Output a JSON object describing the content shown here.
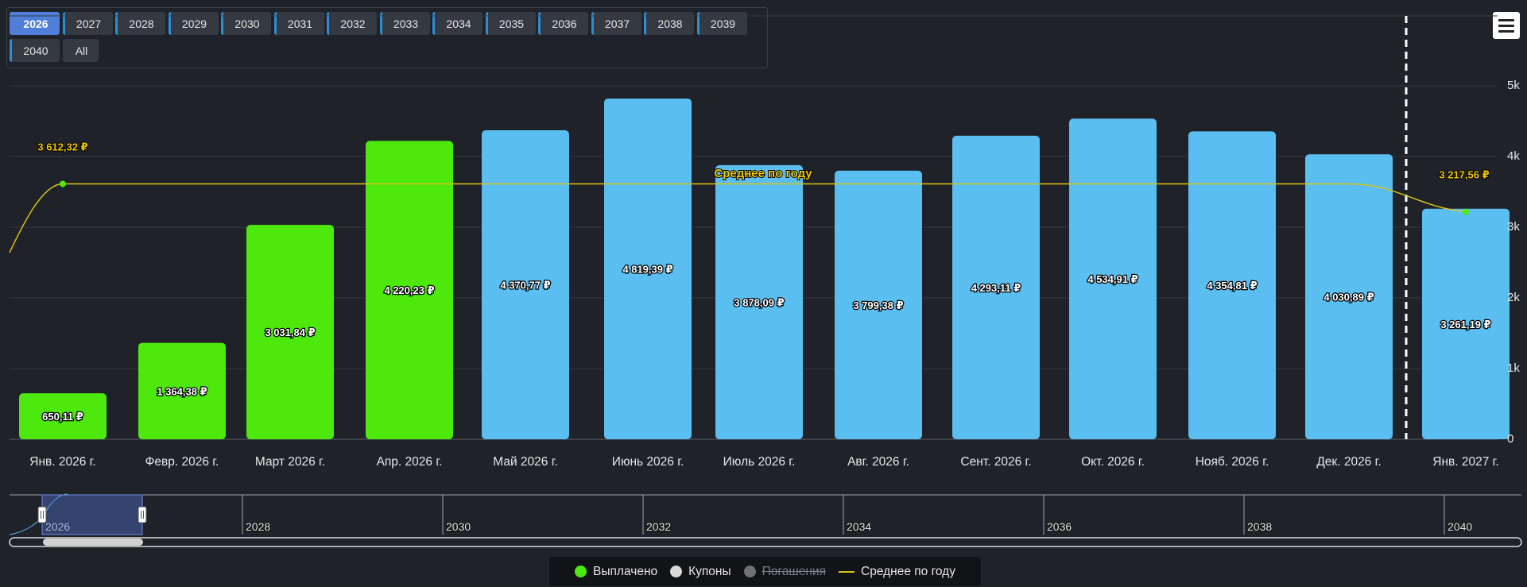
{
  "years": [
    "2026",
    "2027",
    "2028",
    "2029",
    "2030",
    "2031",
    "2032",
    "2033",
    "2034",
    "2035",
    "2036",
    "2037",
    "2038",
    "2039",
    "2040",
    "All"
  ],
  "active_year": "2026",
  "chart_data": {
    "type": "bar",
    "categories": [
      "Янв. 2026 г.",
      "Февр. 2026 г.",
      "Март 2026 г.",
      "Апр. 2026 г.",
      "Май 2026 г.",
      "Июнь 2026 г.",
      "Июль 2026 г.",
      "Авг. 2026 г.",
      "Сент. 2026 г.",
      "Окт. 2026 г.",
      "Нояб. 2026 г.",
      "Дек. 2026 г.",
      "Янв. 2027 г."
    ],
    "values": [
      650.11,
      1364.38,
      3031.84,
      4220.23,
      4370.77,
      4819.39,
      3878.09,
      3799.38,
      4293.11,
      4534.91,
      4354.81,
      4030.89,
      3261.19
    ],
    "value_labels": [
      "650,11 ₽",
      "1 364,38 ₽",
      "3 031,84 ₽",
      "4 220,23 ₽",
      "4 370,77 ₽",
      "4 819,39 ₽",
      "3 878,09 ₽",
      "3 799,38 ₽",
      "4 293,11 ₽",
      "4 534,91 ₽",
      "4 354,81 ₽",
      "4 030,89 ₽",
      "3 261,19 ₽"
    ],
    "status": [
      "paid",
      "paid",
      "paid",
      "paid",
      "coupon",
      "coupon",
      "coupon",
      "coupon",
      "coupon",
      "coupon",
      "coupon",
      "coupon",
      "coupon"
    ],
    "average": {
      "name": "Среднее по году",
      "values": [
        3612.32,
        3217.56
      ],
      "labels": [
        "3 612,32 ₽",
        "3 217,56 ₽"
      ]
    },
    "yticks": [
      "0",
      "1k",
      "2k",
      "3k",
      "4k",
      "5k"
    ],
    "ylim": [
      0,
      5000
    ],
    "navigator_ticks": [
      "2026",
      "2028",
      "2030",
      "2032",
      "2034",
      "2036",
      "2038",
      "2040"
    ],
    "legend": [
      {
        "name": "Выплачено",
        "color": "#4de80c",
        "type": "dot",
        "enabled": true
      },
      {
        "name": "Купоны",
        "color": "#d9d9d9",
        "type": "dot",
        "enabled": true
      },
      {
        "name": "Погашения",
        "color": "#6e7076",
        "type": "dot",
        "enabled": false
      },
      {
        "name": "Среднее по году",
        "color": "#d9c21a",
        "type": "line",
        "enabled": true
      }
    ],
    "colors": {
      "paid": "#4de80c",
      "coupon": "#5bbef0",
      "average": "#d9c21a"
    }
  }
}
